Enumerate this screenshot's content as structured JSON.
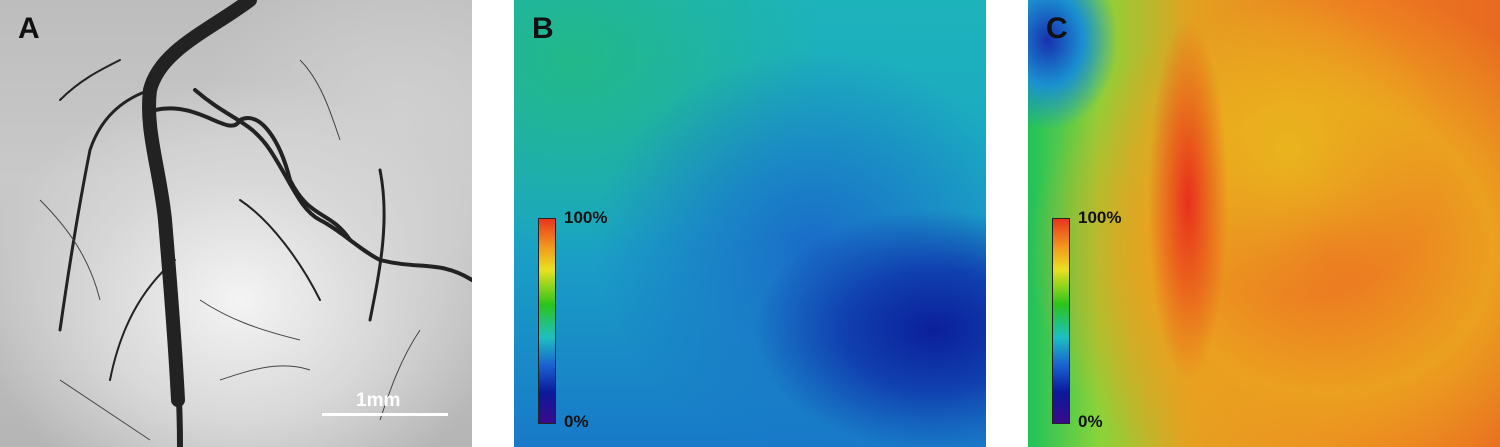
{
  "panels": [
    {
      "label": "A",
      "type": "grayscale vessel image",
      "scale_bar": "1mm"
    },
    {
      "label": "B",
      "type": "pseudocolor map",
      "colorbar": {
        "max_label": "100%",
        "min_label": "0%",
        "colormap": "jet"
      }
    },
    {
      "label": "C",
      "type": "pseudocolor map",
      "colorbar": {
        "max_label": "100%",
        "min_label": "0%",
        "colormap": "jet"
      }
    }
  ]
}
